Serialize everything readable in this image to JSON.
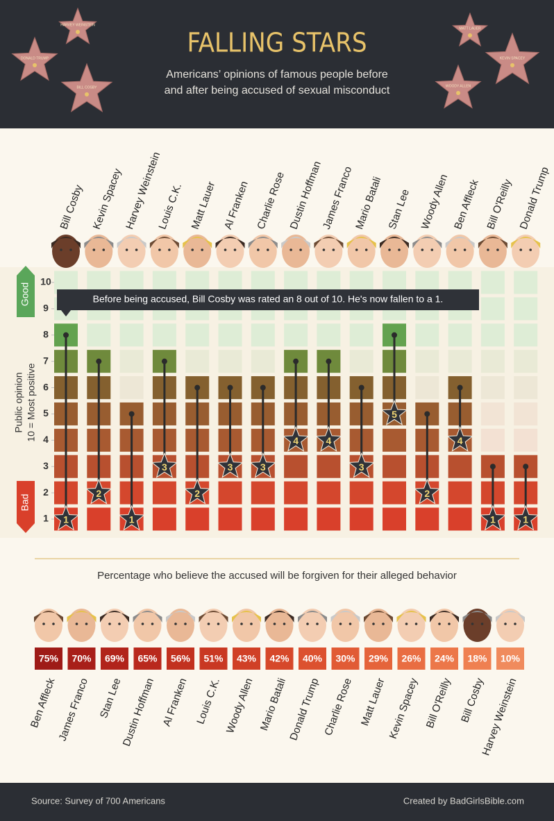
{
  "header": {
    "title": "FALLING STARS",
    "subtitle": [
      "Americans’ opinions of famous people before",
      "and after being accused of sexual misconduct"
    ],
    "stars": [
      "HARVEY WEINSTEIN",
      "DONALD TRUMP",
      "BILL COSBY",
      "MATT LAUER",
      "KEVIN SPACEY",
      "WOODY ALLEN"
    ]
  },
  "chart_data": [
    {
      "type": "dumbbell",
      "ylabel": [
        "Public opinion",
        "10 = Most positive"
      ],
      "good_label": "Good",
      "bad_label": "Bad",
      "annotation": "Before being accused, Bill Cosby was rated an 8 out of 10. He's now fallen to a 1.",
      "categories": [
        "Bill Cosby",
        "Kevin Spacey",
        "Harvey Weinstein",
        "Louis C.K.",
        "Matt Lauer",
        "Al Franken",
        "Charlie Rose",
        "Dustin Hoffman",
        "James Franco",
        "Mario Batali",
        "Stan Lee",
        "Woody Allen",
        "Ben Affleck",
        "Bill O'Reilly",
        "Donald Trump"
      ],
      "series": [
        {
          "name": "Before",
          "color": "#2b2b2b",
          "values": [
            8,
            7,
            5,
            7,
            6,
            6,
            6,
            7,
            7,
            6,
            8,
            5,
            6,
            3,
            3
          ]
        },
        {
          "name": "After",
          "color": "#2b2b2b",
          "values": [
            1,
            2,
            1,
            3,
            2,
            3,
            3,
            4,
            4,
            3,
            5,
            2,
            4,
            1,
            1
          ]
        }
      ],
      "ylim": [
        1,
        10
      ],
      "yticks": [
        1,
        2,
        3,
        4,
        5,
        6,
        7,
        8,
        9,
        10
      ],
      "level_colors": [
        "#d9402b",
        "#d4472d",
        "#b8502f",
        "#a85a31",
        "#985d30",
        "#84602f",
        "#6f8a3c",
        "#63a24f",
        "#63a24f",
        "#63a24f"
      ],
      "pale_colors": [
        "#f7d4c9",
        "#f7d4c9",
        "#f5d8cb",
        "#f3e1d3",
        "#f2e4d5",
        "#ede7d6",
        "#e9ead6",
        "#deedd6",
        "#deedd6",
        "#deedd6"
      ]
    },
    {
      "type": "tiles",
      "title": "Percentage who believe the accused will be forgiven for their alleged behavior",
      "categories": [
        "Ben Affleck",
        "James Franco",
        "Stan Lee",
        "Dustin Hoffman",
        "Al Franken",
        "Louis C.K.",
        "Woody Allen",
        "Mario Batali",
        "Donald Trump",
        "Charlie Rose",
        "Matt Lauer",
        "Kevin Spacey",
        "Bill O'Reilly",
        "Bill Cosby",
        "Harvey Weinstein"
      ],
      "values": [
        75,
        70,
        69,
        65,
        56,
        51,
        43,
        42,
        40,
        30,
        29,
        26,
        24,
        18,
        10
      ],
      "value_labels": [
        "75%",
        "70%",
        "69%",
        "65%",
        "56%",
        "51%",
        "43%",
        "42%",
        "40%",
        "30%",
        "29%",
        "26%",
        "24%",
        "18%",
        "10%"
      ],
      "colors": [
        "#9e1b17",
        "#a81f19",
        "#b1241b",
        "#b9291d",
        "#c2311f",
        "#c93822",
        "#d04026",
        "#d6482a",
        "#dc512f",
        "#e15b35",
        "#e5643b",
        "#e96d42",
        "#ec7749",
        "#ef8051",
        "#f08b5d"
      ]
    }
  ],
  "footer": {
    "source": "Source: Survey of 700 Americans",
    "credit": "Created by BadGirlsBible.com"
  }
}
